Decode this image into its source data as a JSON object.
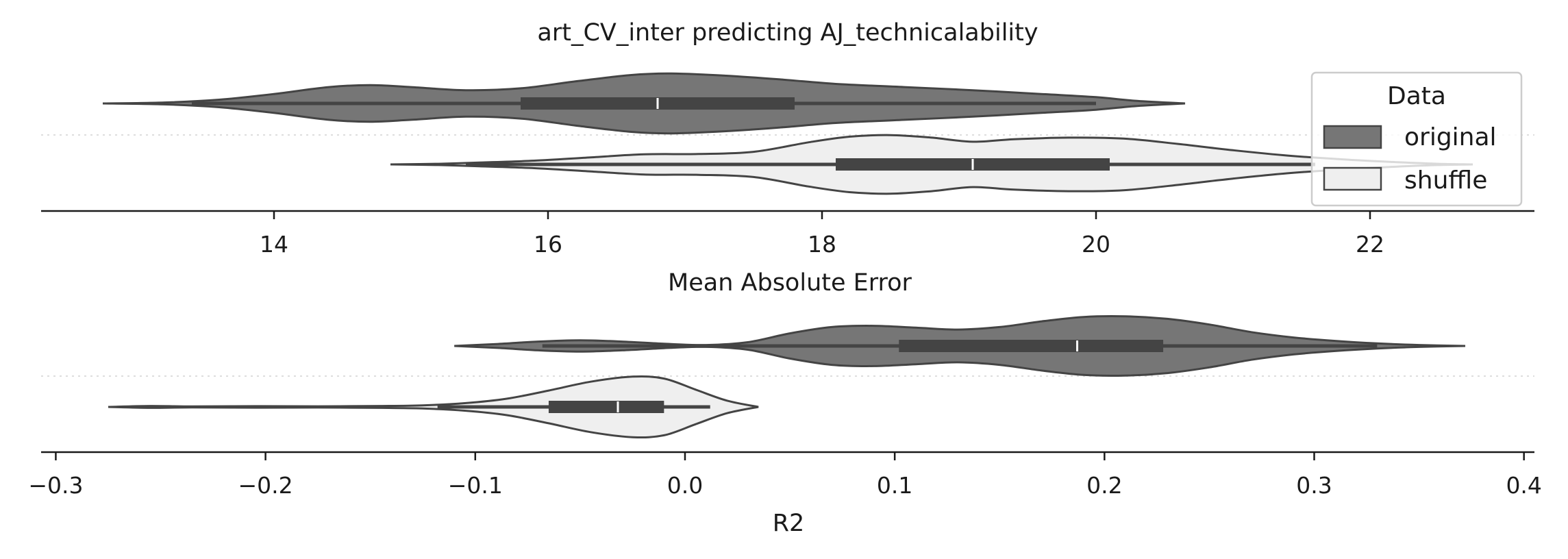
{
  "chart_data": [
    {
      "type": "violin",
      "title": "art_CV_inter predicting AJ_technicalability",
      "xlabel": "Mean Absolute Error",
      "ylabel": "",
      "xlim": [
        12.3,
        23.2
      ],
      "xticks": [
        14,
        16,
        18,
        20,
        22
      ],
      "xtick_labels": [
        "14",
        "16",
        "18",
        "20",
        "22"
      ],
      "grid": "horizontal dotted separator",
      "series": [
        {
          "name": "original",
          "color": "#767676",
          "whisker": [
            13.4,
            20.0
          ],
          "q1": 15.8,
          "median": 16.8,
          "q3": 17.8,
          "density": [
            [
              12.75,
              0.0
            ],
            [
              13.2,
              0.03
            ],
            [
              13.6,
              0.12
            ],
            [
              14.0,
              0.3
            ],
            [
              14.4,
              0.52
            ],
            [
              14.7,
              0.58
            ],
            [
              15.0,
              0.52
            ],
            [
              15.4,
              0.42
            ],
            [
              15.8,
              0.48
            ],
            [
              16.2,
              0.7
            ],
            [
              16.6,
              0.9
            ],
            [
              16.9,
              0.95
            ],
            [
              17.3,
              0.88
            ],
            [
              17.7,
              0.76
            ],
            [
              18.1,
              0.62
            ],
            [
              18.6,
              0.52
            ],
            [
              19.1,
              0.42
            ],
            [
              19.6,
              0.3
            ],
            [
              20.0,
              0.2
            ],
            [
              20.3,
              0.08
            ],
            [
              20.65,
              0.0
            ]
          ]
        },
        {
          "name": "shuffle",
          "color": "#efefef",
          "whisker": [
            15.4,
            21.6
          ],
          "q1": 18.1,
          "median": 19.1,
          "q3": 20.1,
          "density": [
            [
              14.85,
              0.0
            ],
            [
              15.2,
              0.02
            ],
            [
              15.5,
              0.06
            ],
            [
              15.9,
              0.12
            ],
            [
              16.3,
              0.22
            ],
            [
              16.7,
              0.32
            ],
            [
              17.1,
              0.33
            ],
            [
              17.5,
              0.4
            ],
            [
              17.9,
              0.7
            ],
            [
              18.2,
              0.88
            ],
            [
              18.5,
              0.93
            ],
            [
              18.8,
              0.85
            ],
            [
              19.1,
              0.72
            ],
            [
              19.4,
              0.8
            ],
            [
              19.8,
              0.85
            ],
            [
              20.2,
              0.82
            ],
            [
              20.6,
              0.65
            ],
            [
              21.0,
              0.45
            ],
            [
              21.4,
              0.28
            ],
            [
              21.8,
              0.16
            ],
            [
              22.2,
              0.07
            ],
            [
              22.5,
              0.02
            ],
            [
              22.75,
              0.0
            ]
          ]
        }
      ],
      "legend": {
        "title": "Data",
        "placement": "upper-right",
        "entries": [
          "original",
          "shuffle"
        ]
      }
    },
    {
      "type": "violin",
      "title": "",
      "xlabel": "R2",
      "ylabel": "",
      "xlim": [
        -0.307,
        0.405
      ],
      "xticks": [
        -0.3,
        -0.2,
        -0.1,
        0.0,
        0.1,
        0.2,
        0.3,
        0.4
      ],
      "xtick_labels": [
        "−0.3",
        "−0.2",
        "−0.1",
        "0.0",
        "0.1",
        "0.2",
        "0.3",
        "0.4"
      ],
      "grid": "horizontal dotted separator",
      "series": [
        {
          "name": "original",
          "color": "#767676",
          "whisker": [
            -0.068,
            0.33
          ],
          "q1": 0.102,
          "median": 0.187,
          "q3": 0.228,
          "density": [
            [
              -0.11,
              0.0
            ],
            [
              -0.09,
              0.06
            ],
            [
              -0.07,
              0.14
            ],
            [
              -0.05,
              0.18
            ],
            [
              -0.03,
              0.14
            ],
            [
              -0.01,
              0.07
            ],
            [
              0.01,
              0.03
            ],
            [
              0.03,
              0.12
            ],
            [
              0.05,
              0.4
            ],
            [
              0.07,
              0.6
            ],
            [
              0.09,
              0.64
            ],
            [
              0.11,
              0.58
            ],
            [
              0.13,
              0.52
            ],
            [
              0.15,
              0.6
            ],
            [
              0.17,
              0.78
            ],
            [
              0.19,
              0.92
            ],
            [
              0.21,
              0.94
            ],
            [
              0.23,
              0.86
            ],
            [
              0.25,
              0.68
            ],
            [
              0.27,
              0.44
            ],
            [
              0.29,
              0.27
            ],
            [
              0.31,
              0.16
            ],
            [
              0.33,
              0.08
            ],
            [
              0.35,
              0.03
            ],
            [
              0.372,
              0.0
            ]
          ]
        },
        {
          "name": "shuffle",
          "color": "#efefef",
          "whisker": [
            -0.118,
            0.012
          ],
          "q1": -0.065,
          "median": -0.032,
          "q3": -0.01,
          "density": [
            [
              -0.275,
              0.0
            ],
            [
              -0.255,
              0.03
            ],
            [
              -0.235,
              0.015
            ],
            [
              -0.205,
              0.025
            ],
            [
              -0.175,
              0.02
            ],
            [
              -0.145,
              0.03
            ],
            [
              -0.125,
              0.05
            ],
            [
              -0.105,
              0.12
            ],
            [
              -0.085,
              0.26
            ],
            [
              -0.065,
              0.52
            ],
            [
              -0.045,
              0.8
            ],
            [
              -0.025,
              0.96
            ],
            [
              -0.01,
              0.9
            ],
            [
              0.005,
              0.55
            ],
            [
              0.02,
              0.2
            ],
            [
              0.035,
              0.0
            ]
          ]
        }
      ]
    }
  ]
}
